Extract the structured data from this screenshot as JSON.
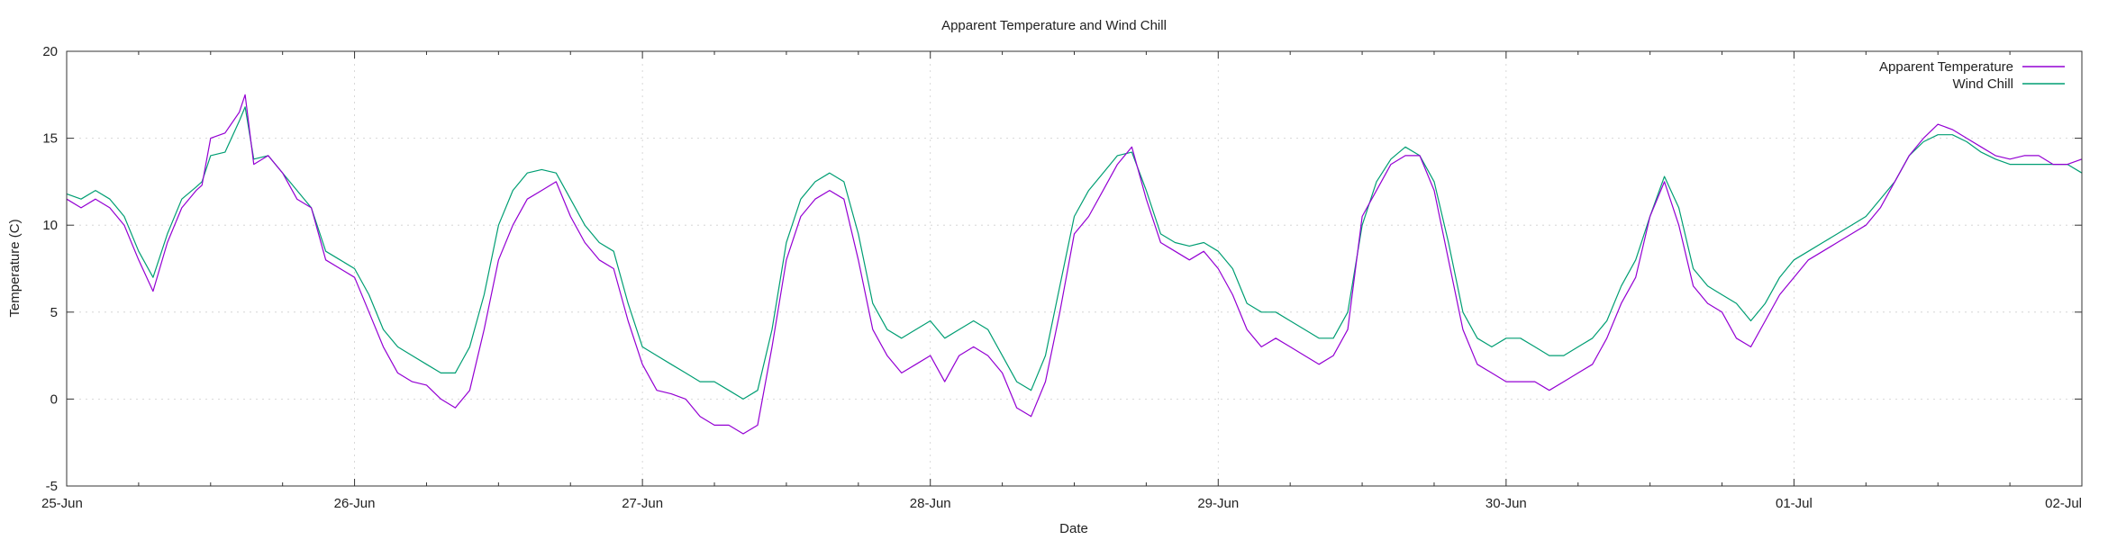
{
  "chart_data": {
    "type": "line",
    "title": "Apparent Temperature and Wind Chill",
    "xlabel": "Date",
    "ylabel": "Temperature (C)",
    "xlim": [
      0,
      7
    ],
    "ylim": [
      -5,
      20
    ],
    "y_ticks": [
      -5,
      0,
      5,
      10,
      15,
      20
    ],
    "x_ticks": [
      {
        "x": 0,
        "label": "25-Jun"
      },
      {
        "x": 1,
        "label": "26-Jun"
      },
      {
        "x": 2,
        "label": "27-Jun"
      },
      {
        "x": 3,
        "label": "28-Jun"
      },
      {
        "x": 4,
        "label": "29-Jun"
      },
      {
        "x": 5,
        "label": "30-Jun"
      },
      {
        "x": 6,
        "label": "01-Jul"
      },
      {
        "x": 7,
        "label": "02-Jul"
      }
    ],
    "grid": true,
    "legend": "top-right",
    "series": [
      {
        "name": "Apparent Temperature",
        "color": "#9400d3",
        "x": [
          0,
          0.05,
          0.1,
          0.15,
          0.2,
          0.25,
          0.3,
          0.35,
          0.4,
          0.45,
          0.47,
          0.5,
          0.55,
          0.6,
          0.62,
          0.65,
          0.7,
          0.75,
          0.8,
          0.85,
          0.9,
          0.95,
          1.0,
          1.05,
          1.1,
          1.15,
          1.2,
          1.25,
          1.3,
          1.35,
          1.4,
          1.45,
          1.5,
          1.55,
          1.6,
          1.65,
          1.7,
          1.75,
          1.8,
          1.85,
          1.9,
          1.95,
          2.0,
          2.05,
          2.1,
          2.15,
          2.2,
          2.25,
          2.3,
          2.35,
          2.4,
          2.45,
          2.5,
          2.55,
          2.6,
          2.65,
          2.7,
          2.75,
          2.8,
          2.85,
          2.9,
          2.95,
          3.0,
          3.05,
          3.1,
          3.15,
          3.2,
          3.25,
          3.3,
          3.35,
          3.4,
          3.45,
          3.5,
          3.55,
          3.6,
          3.65,
          3.7,
          3.75,
          3.8,
          3.85,
          3.9,
          3.95,
          4.0,
          4.05,
          4.1,
          4.15,
          4.2,
          4.25,
          4.3,
          4.35,
          4.4,
          4.45,
          4.5,
          4.55,
          4.6,
          4.65,
          4.7,
          4.75,
          4.8,
          4.85,
          4.9,
          4.95,
          5.0,
          5.05,
          5.1,
          5.15,
          5.2,
          5.25,
          5.3,
          5.35,
          5.4,
          5.45,
          5.5,
          5.55,
          5.6,
          5.65,
          5.7,
          5.75,
          5.8,
          5.85,
          5.9,
          5.95,
          6.0,
          6.05,
          6.1,
          6.15,
          6.2,
          6.25,
          6.3,
          6.35,
          6.4,
          6.45,
          6.5,
          6.55,
          6.6,
          6.65,
          6.7,
          6.75,
          6.8,
          6.85,
          6.9,
          6.95,
          7.0
        ],
        "y": [
          11.5,
          11.0,
          11.5,
          11.0,
          10.0,
          8.0,
          6.2,
          9.0,
          11.0,
          12.0,
          12.3,
          15.0,
          15.3,
          16.5,
          17.5,
          13.5,
          14.0,
          13.0,
          11.5,
          11.0,
          8.0,
          7.5,
          7.0,
          5.0,
          3.0,
          1.5,
          1.0,
          0.8,
          0.0,
          -0.5,
          0.5,
          4.0,
          8.0,
          10.0,
          11.5,
          12.0,
          12.5,
          10.5,
          9.0,
          8.0,
          7.5,
          4.5,
          2.0,
          0.5,
          0.3,
          0.0,
          -1.0,
          -1.5,
          -1.5,
          -2.0,
          -1.5,
          3.0,
          8.0,
          10.5,
          11.5,
          12.0,
          11.5,
          8.0,
          4.0,
          2.5,
          1.5,
          2.0,
          2.5,
          1.0,
          2.5,
          3.0,
          2.5,
          1.5,
          -0.5,
          -1.0,
          1.0,
          5.0,
          9.5,
          10.5,
          12.0,
          13.5,
          14.5,
          11.5,
          9.0,
          8.5,
          8.0,
          8.5,
          7.5,
          6.0,
          4.0,
          3.0,
          3.5,
          3.0,
          2.5,
          2.0,
          2.5,
          4.0,
          10.5,
          12.0,
          13.5,
          14.0,
          14.0,
          12.0,
          8.0,
          4.0,
          2.0,
          1.5,
          1.0,
          1.0,
          1.0,
          0.5,
          1.0,
          1.5,
          2.0,
          3.5,
          5.5,
          7.0,
          10.5,
          12.5,
          10.0,
          6.5,
          5.5,
          5.0,
          3.5,
          3.0,
          4.5,
          6.0,
          7.0,
          8.0,
          8.5,
          9.0,
          9.5,
          10.0,
          11.0,
          12.5,
          14.0,
          15.0,
          15.8,
          15.5,
          15.0,
          14.5,
          14.0,
          13.8,
          14.0,
          14.0,
          13.5,
          13.5,
          13.8
        ]
      },
      {
        "name": "Wind Chill",
        "color": "#009e73",
        "x": [
          0,
          0.05,
          0.1,
          0.15,
          0.2,
          0.25,
          0.3,
          0.35,
          0.4,
          0.45,
          0.47,
          0.5,
          0.55,
          0.6,
          0.62,
          0.65,
          0.7,
          0.75,
          0.8,
          0.85,
          0.9,
          0.95,
          1.0,
          1.05,
          1.1,
          1.15,
          1.2,
          1.25,
          1.3,
          1.35,
          1.4,
          1.45,
          1.5,
          1.55,
          1.6,
          1.65,
          1.7,
          1.75,
          1.8,
          1.85,
          1.9,
          1.95,
          2.0,
          2.05,
          2.1,
          2.15,
          2.2,
          2.25,
          2.3,
          2.35,
          2.4,
          2.45,
          2.5,
          2.55,
          2.6,
          2.65,
          2.7,
          2.75,
          2.8,
          2.85,
          2.9,
          2.95,
          3.0,
          3.05,
          3.1,
          3.15,
          3.2,
          3.25,
          3.3,
          3.35,
          3.4,
          3.45,
          3.5,
          3.55,
          3.6,
          3.65,
          3.7,
          3.75,
          3.8,
          3.85,
          3.9,
          3.95,
          4.0,
          4.05,
          4.1,
          4.15,
          4.2,
          4.25,
          4.3,
          4.35,
          4.4,
          4.45,
          4.5,
          4.55,
          4.6,
          4.65,
          4.7,
          4.75,
          4.8,
          4.85,
          4.9,
          4.95,
          5.0,
          5.05,
          5.1,
          5.15,
          5.2,
          5.25,
          5.3,
          5.35,
          5.4,
          5.45,
          5.5,
          5.55,
          5.6,
          5.65,
          5.7,
          5.75,
          5.8,
          5.85,
          5.9,
          5.95,
          6.0,
          6.05,
          6.1,
          6.15,
          6.2,
          6.25,
          6.3,
          6.35,
          6.4,
          6.45,
          6.5,
          6.55,
          6.6,
          6.65,
          6.7,
          6.75,
          6.8,
          6.85,
          6.9,
          6.95,
          7.0
        ],
        "y": [
          11.8,
          11.5,
          12.0,
          11.5,
          10.5,
          8.5,
          7.0,
          9.5,
          11.5,
          12.2,
          12.5,
          14.0,
          14.2,
          16.0,
          16.8,
          13.8,
          14.0,
          13.0,
          12.0,
          11.0,
          8.5,
          8.0,
          7.5,
          6.0,
          4.0,
          3.0,
          2.5,
          2.0,
          1.5,
          1.5,
          3.0,
          6.0,
          10.0,
          12.0,
          13.0,
          13.2,
          13.0,
          11.5,
          10.0,
          9.0,
          8.5,
          5.5,
          3.0,
          2.5,
          2.0,
          1.5,
          1.0,
          1.0,
          0.5,
          0.0,
          0.5,
          4.0,
          9.0,
          11.5,
          12.5,
          13.0,
          12.5,
          9.5,
          5.5,
          4.0,
          3.5,
          4.0,
          4.5,
          3.5,
          4.0,
          4.5,
          4.0,
          2.5,
          1.0,
          0.5,
          2.5,
          6.5,
          10.5,
          12.0,
          13.0,
          14.0,
          14.2,
          12.0,
          9.5,
          9.0,
          8.8,
          9.0,
          8.5,
          7.5,
          5.5,
          5.0,
          5.0,
          4.5,
          4.0,
          3.5,
          3.5,
          5.0,
          10.0,
          12.5,
          13.8,
          14.5,
          14.0,
          12.5,
          9.0,
          5.0,
          3.5,
          3.0,
          3.5,
          3.5,
          3.0,
          2.5,
          2.5,
          3.0,
          3.5,
          4.5,
          6.5,
          8.0,
          10.5,
          12.8,
          11.0,
          7.5,
          6.5,
          6.0,
          5.5,
          4.5,
          5.5,
          7.0,
          8.0,
          8.5,
          9.0,
          9.5,
          10.0,
          10.5,
          11.5,
          12.5,
          14.0,
          14.8,
          15.2,
          15.2,
          14.8,
          14.2,
          13.8,
          13.5,
          13.5,
          13.5,
          13.5,
          13.5,
          13.0
        ]
      }
    ]
  }
}
